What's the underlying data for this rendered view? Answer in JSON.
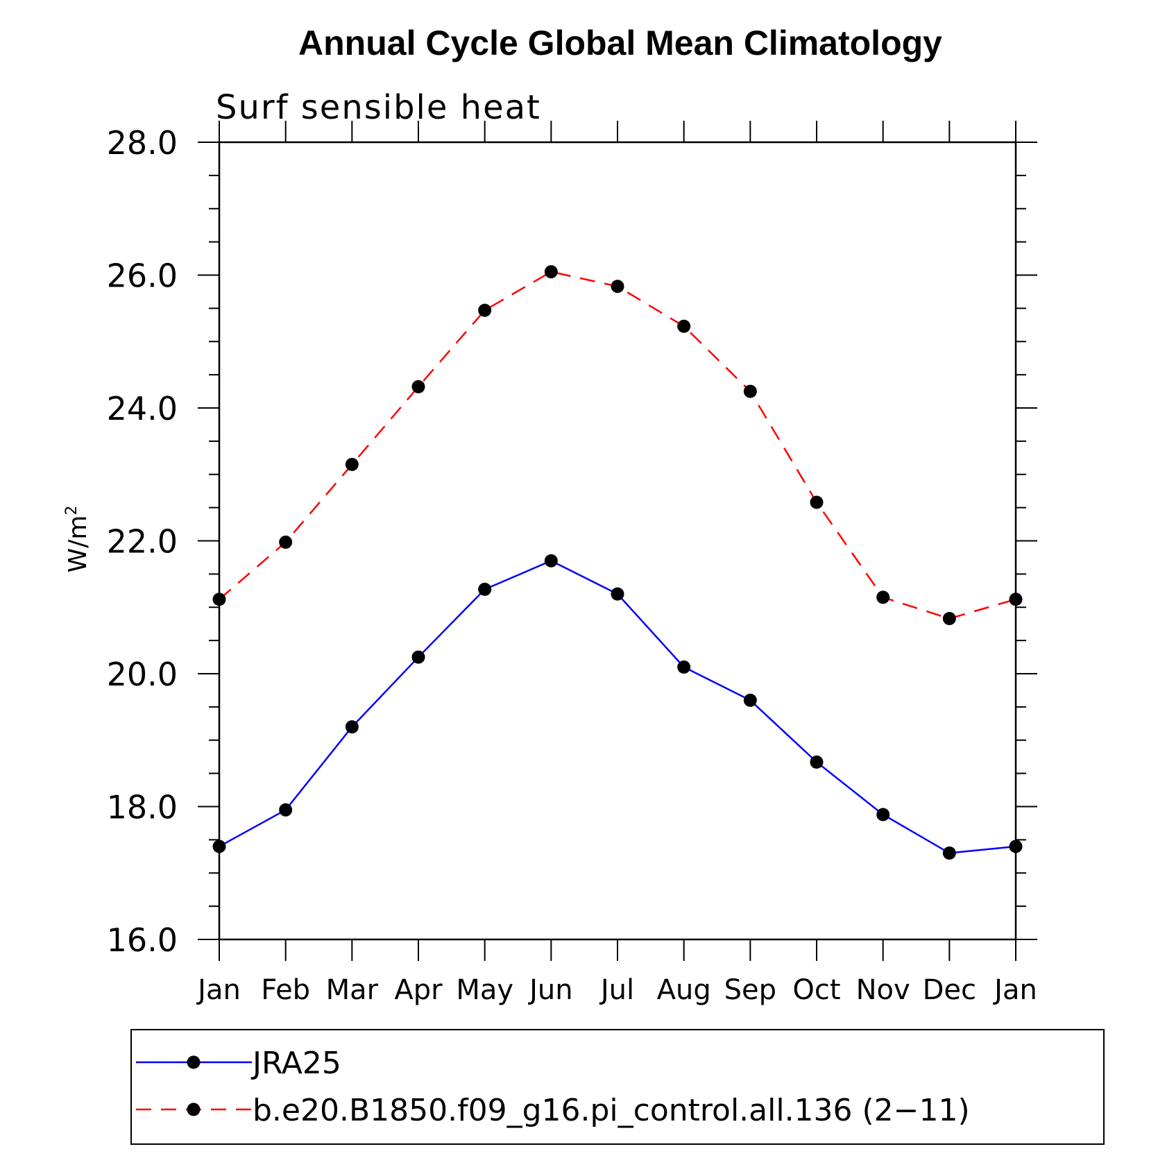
{
  "chart_data": {
    "type": "line",
    "title": "Annual Cycle Global Mean Climatology",
    "subtitle": "Surf sensible heat",
    "ylabel": "W/m",
    "ylabel_superscript": "2",
    "xlabel": "",
    "ylim": [
      16.0,
      28.0
    ],
    "y_major_ticks": [
      "16.0",
      "18.0",
      "20.0",
      "22.0",
      "24.0",
      "26.0",
      "28.0"
    ],
    "y_minor_step": 0.5,
    "categories": [
      "Jan",
      "Feb",
      "Mar",
      "Apr",
      "May",
      "Jun",
      "Jul",
      "Aug",
      "Sep",
      "Oct",
      "Nov",
      "Dec",
      "Jan"
    ],
    "grid": false,
    "legend_position": "bottom",
    "series": [
      {
        "name": "JRA25",
        "color": "#0000ff",
        "style": "solid",
        "marker": "filled-circle",
        "values": [
          17.4,
          17.95,
          19.2,
          20.25,
          21.27,
          21.7,
          21.2,
          20.1,
          19.6,
          18.67,
          17.88,
          17.3,
          17.4
        ]
      },
      {
        "name": "b.e20.B1850.f09_g16.pi_control.all.136 (2−11)",
        "color": "#ff0000",
        "style": "dashed",
        "marker": "filled-circle",
        "values": [
          21.12,
          21.98,
          23.15,
          24.32,
          25.47,
          26.05,
          25.83,
          25.23,
          24.25,
          22.58,
          21.15,
          20.83,
          21.12
        ]
      }
    ]
  }
}
